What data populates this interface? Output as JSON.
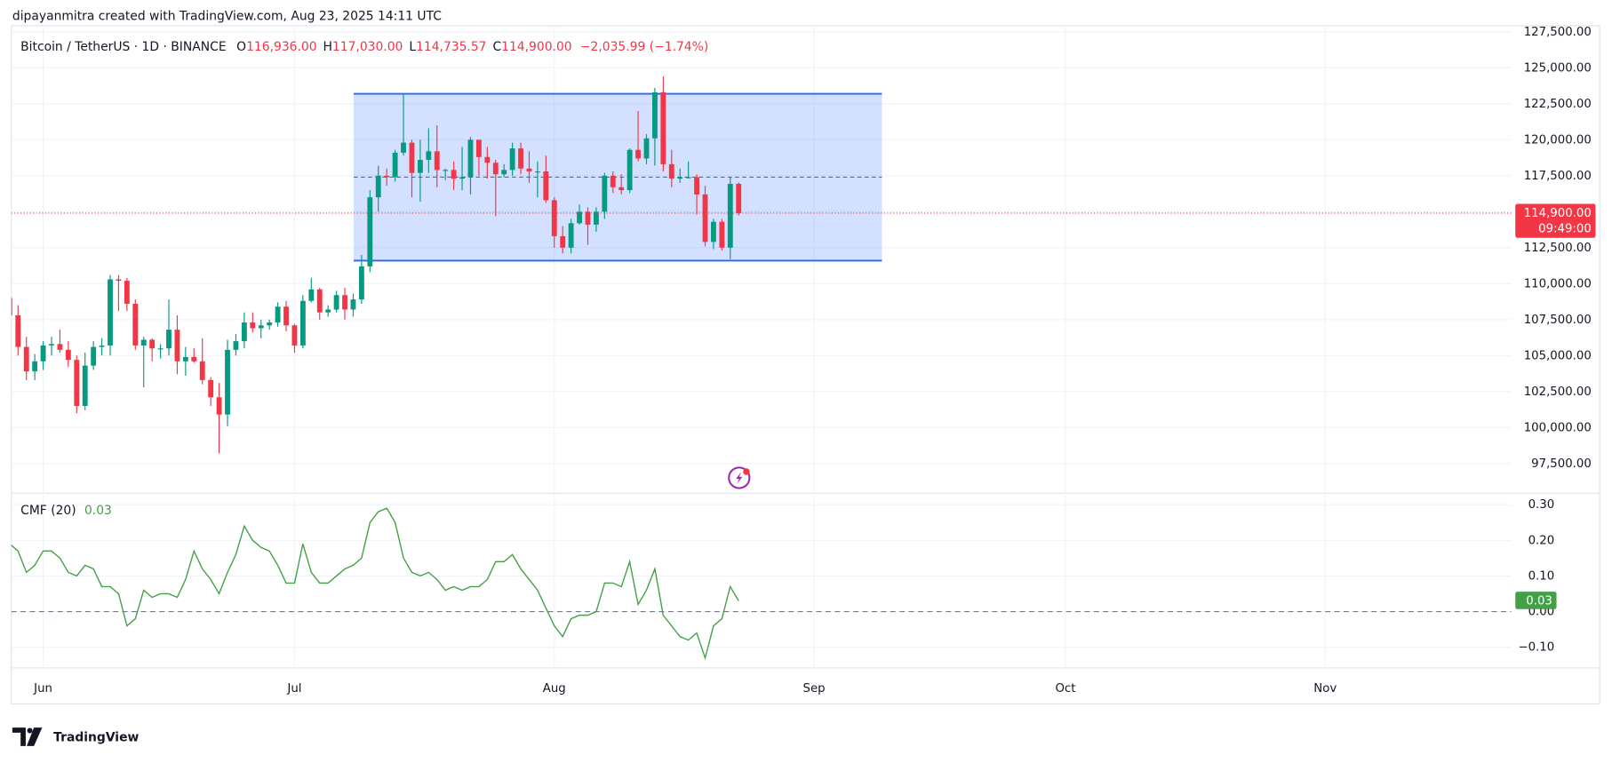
{
  "header": "dipayanmitra created with TradingView.com, Aug 23, 2025 14:11 UTC",
  "logo": "TradingView",
  "chart_data": {
    "type": "candlestick",
    "title": "Bitcoin / TetherUS · 1D · BINANCE",
    "legend_values": [
      {
        "prefix": "O",
        "value": 116936,
        "label": "116,936.00"
      },
      {
        "prefix": "H",
        "value": 117030,
        "label": "117,030.00"
      },
      {
        "prefix": "L",
        "value": 114735.57,
        "label": "114,735.57"
      },
      {
        "prefix": "C",
        "value": 114900,
        "label": "114,900.00"
      }
    ],
    "change_label": "−2,035.99 (−1.74%)",
    "countdown": "09:49:00",
    "up_color": "#089981",
    "down_color": "#f23645",
    "categories": [
      null,
      null,
      null,
      null,
      null,
      null,
      null,
      null,
      null,
      null,
      null,
      null,
      null,
      null,
      null,
      null,
      null,
      null,
      null,
      null,
      null,
      null,
      null,
      null,
      null,
      null,
      null,
      null,
      null,
      null,
      null,
      null,
      null,
      null,
      null,
      null,
      null,
      null,
      null,
      null,
      null,
      null,
      null,
      null,
      null,
      null,
      null,
      null,
      null,
      null,
      null,
      null,
      null,
      null,
      null,
      null,
      null,
      null,
      null,
      null,
      null,
      null,
      null,
      null,
      null,
      null,
      null,
      null,
      null,
      null,
      null,
      null,
      null,
      null,
      null,
      null,
      null,
      null,
      null,
      null,
      null,
      null,
      null,
      null,
      null,
      null,
      null,
      null
    ],
    "open": [
      109000,
      107800,
      105600,
      103900,
      104600,
      105700,
      105800,
      105400,
      104700,
      101500,
      104300,
      105600,
      105700,
      110300,
      110200,
      108600,
      105700,
      106100,
      105500,
      105500,
      106800,
      104600,
      104900,
      104600,
      103300,
      102100,
      100900,
      105400,
      106000,
      107300,
      106900,
      107100,
      107300,
      108400,
      107100,
      105700,
      108800,
      109600,
      108000,
      108200,
      109200,
      108200,
      108900,
      111200,
      116000,
      117500,
      117400,
      119100,
      119800,
      117700,
      118600,
      119200,
      117900,
      117900,
      117300,
      117400,
      120000,
      118800,
      118400,
      117600,
      117900,
      119400,
      118000,
      117800,
      117800,
      115800,
      113300,
      112500,
      114200,
      115000,
      114100,
      115000,
      117500,
      116700,
      116500,
      119300,
      118700,
      120100,
      123300,
      118300,
      117300,
      117400,
      117400,
      116200,
      112900,
      114300,
      112500,
      116936
    ],
    "high": [
      109800,
      108500,
      106300,
      105100,
      106000,
      106300,
      106800,
      106000,
      105000,
      105200,
      106000,
      106200,
      110600,
      110600,
      110400,
      108900,
      106300,
      106200,
      105800,
      108900,
      107800,
      105600,
      105500,
      106200,
      103500,
      103100,
      106100,
      106500,
      108000,
      108000,
      107500,
      107500,
      108700,
      108800,
      107200,
      109200,
      110400,
      109700,
      108500,
      109500,
      109700,
      109300,
      112000,
      116500,
      118200,
      118000,
      119300,
      123200,
      120000,
      120000,
      120800,
      121000,
      118000,
      118500,
      119500,
      120200,
      120000,
      119500,
      118600,
      118300,
      119800,
      119800,
      119200,
      118500,
      118900,
      116000,
      114000,
      114500,
      115500,
      115300,
      115300,
      117700,
      117800,
      117600,
      119400,
      122000,
      120400,
      123600,
      124400,
      119300,
      118000,
      118500,
      117600,
      116800,
      114500,
      114500,
      117400,
      117030
    ],
    "low": [
      107200,
      105000,
      103300,
      103300,
      104000,
      105000,
      105200,
      104200,
      101000,
      101200,
      104000,
      105000,
      105000,
      108100,
      108100,
      105400,
      102800,
      104600,
      104800,
      105000,
      103700,
      103600,
      104500,
      103000,
      101500,
      98200,
      100100,
      105000,
      105500,
      106600,
      106200,
      106800,
      107000,
      106700,
      105200,
      105500,
      108700,
      107500,
      107700,
      108000,
      107500,
      107700,
      108600,
      110800,
      115000,
      116800,
      117100,
      118900,
      116000,
      115700,
      117700,
      116700,
      117200,
      116500,
      116500,
      116200,
      117500,
      117300,
      114700,
      117400,
      117500,
      117600,
      117000,
      116000,
      115600,
      112500,
      112100,
      112100,
      114100,
      112700,
      113600,
      114500,
      116300,
      116200,
      116300,
      118500,
      118300,
      118200,
      117800,
      116700,
      117000,
      117300,
      114800,
      112600,
      112400,
      112300,
      111700,
      114735.57
    ],
    "close": [
      107800,
      105600,
      103900,
      104600,
      105700,
      105800,
      105400,
      104700,
      101500,
      104300,
      105600,
      105700,
      110300,
      110200,
      108600,
      105700,
      106100,
      105500,
      105500,
      106800,
      104600,
      104900,
      104600,
      103300,
      102100,
      100900,
      105400,
      106000,
      107300,
      106900,
      107100,
      107300,
      108400,
      107100,
      105700,
      108800,
      109600,
      108000,
      108200,
      109200,
      108200,
      108900,
      111200,
      116000,
      117500,
      117400,
      119100,
      119800,
      117700,
      118600,
      119200,
      117900,
      117900,
      117300,
      117400,
      120000,
      118800,
      118400,
      117600,
      117900,
      119400,
      118000,
      117800,
      117800,
      115800,
      113300,
      112500,
      114200,
      115000,
      114100,
      115000,
      117500,
      116700,
      116500,
      119300,
      118700,
      120100,
      123300,
      118300,
      117300,
      117400,
      117400,
      116200,
      112900,
      114300,
      112500,
      116936,
      114900
    ],
    "xlim": [
      0.2,
      179.2
    ],
    "xticks": [
      {
        "value": 4,
        "label": "Jun"
      },
      {
        "value": 34,
        "label": "Jul"
      },
      {
        "value": 65,
        "label": "Aug"
      },
      {
        "value": 96,
        "label": "Sep"
      },
      {
        "value": 126,
        "label": "Oct"
      },
      {
        "value": 157,
        "label": "Nov"
      }
    ],
    "ylim": [
      95430,
      127930
    ],
    "yticks": [
      {
        "value": 97500,
        "label": "97,500.00"
      },
      {
        "value": 100000,
        "label": "100,000.00"
      },
      {
        "value": 102500,
        "label": "102,500.00"
      },
      {
        "value": 105000,
        "label": "105,000.00"
      },
      {
        "value": 107500,
        "label": "107,500.00"
      },
      {
        "value": 110000,
        "label": "110,000.00"
      },
      {
        "value": 112500,
        "label": "112,500.00"
      },
      {
        "value": 115000,
        "label": "115,000.00"
      },
      {
        "value": 117500,
        "label": "117,500.00"
      },
      {
        "value": 120000,
        "label": "120,000.00"
      },
      {
        "value": 122500,
        "label": "122,500.00"
      },
      {
        "value": 125000,
        "label": "125,000.00"
      },
      {
        "value": 127500,
        "label": "127,500.00"
      }
    ],
    "grid": true,
    "range_box": {
      "x": [
        41.05,
        104.1
      ],
      "y": [
        111600,
        123200
      ],
      "mid": 117400,
      "color": "#2962ff"
    },
    "indicator": {
      "type": "line",
      "series": [
        {
          "name": "CMF (20)",
          "color": "#43a047",
          "values": [
            0.19,
            0.17,
            0.11,
            0.13,
            0.17,
            0.17,
            0.15,
            0.11,
            0.1,
            0.13,
            0.12,
            0.07,
            0.07,
            0.05,
            -0.04,
            -0.02,
            0.06,
            0.04,
            0.05,
            0.05,
            0.04,
            0.09,
            0.17,
            0.12,
            0.09,
            0.05,
            0.11,
            0.16,
            0.24,
            0.2,
            0.18,
            0.17,
            0.13,
            0.08,
            0.08,
            0.19,
            0.11,
            0.08,
            0.08,
            0.1,
            0.12,
            0.13,
            0.15,
            0.25,
            0.28,
            0.29,
            0.25,
            0.15,
            0.11,
            0.1,
            0.11,
            0.09,
            0.06,
            0.07,
            0.06,
            0.07,
            0.07,
            0.09,
            0.14,
            0.14,
            0.16,
            0.12,
            0.09,
            0.06,
            0.01,
            -0.04,
            -0.07,
            -0.02,
            -0.01,
            -0.01,
            0.0,
            0.08,
            0.08,
            0.07,
            0.14,
            0.02,
            0.06,
            0.12,
            -0.01,
            -0.04,
            -0.07,
            -0.08,
            -0.06,
            -0.13,
            -0.04,
            -0.02,
            0.07,
            0.03
          ]
        }
      ],
      "ylim": [
        -0.158,
        0.332
      ],
      "yticks": [
        {
          "value": 0.3,
          "label": "0.30"
        },
        {
          "value": 0.2,
          "label": "0.20"
        },
        {
          "value": 0.1,
          "label": "0.10"
        },
        {
          "value": 0,
          "label": "0.00"
        },
        {
          "value": -0.1,
          "label": "−0.10"
        }
      ],
      "zero_line": 0
    }
  }
}
